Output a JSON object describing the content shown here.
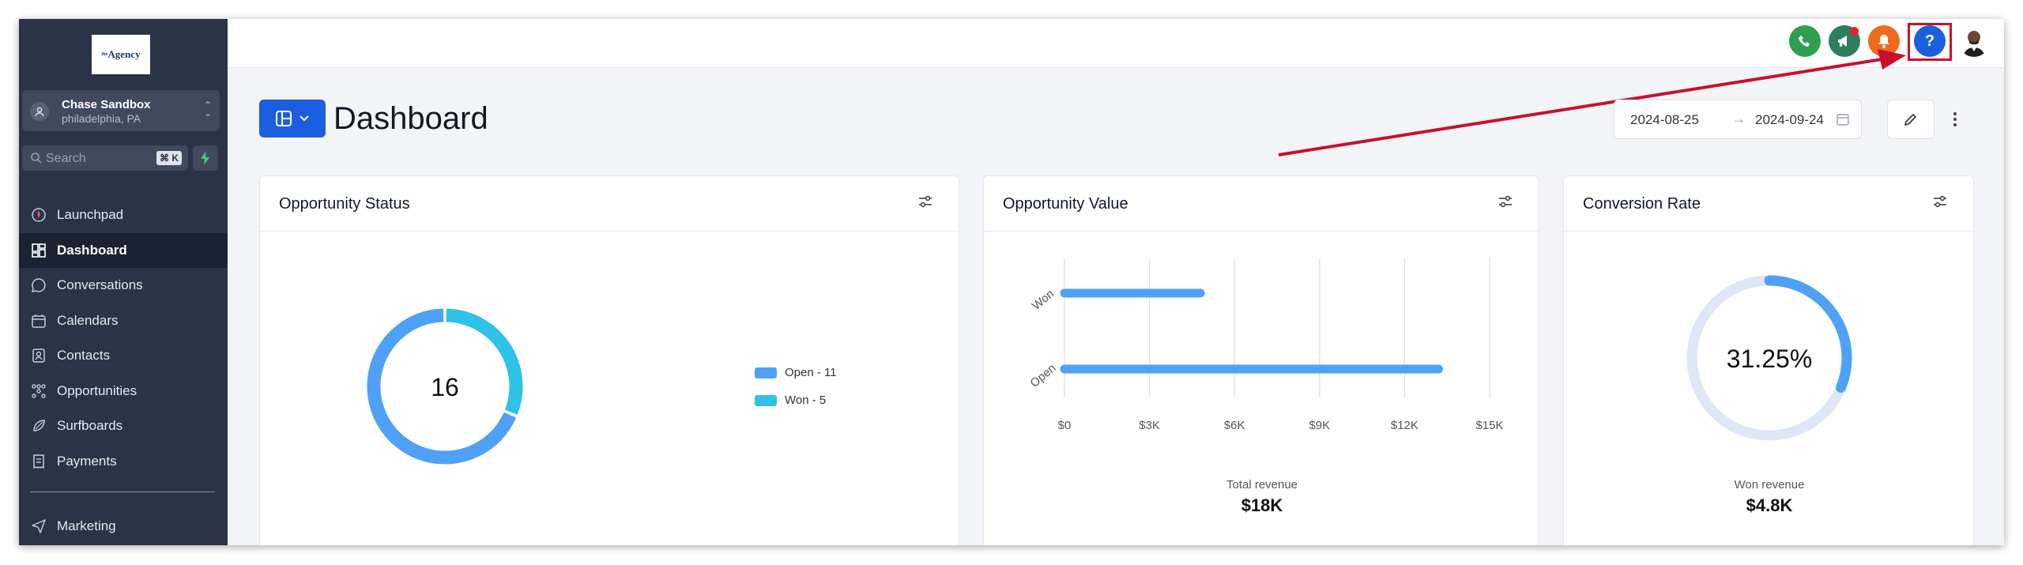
{
  "logo": {
    "sup": "the",
    "text": "Agency"
  },
  "account": {
    "name": "Chase Sandbox",
    "location": "philadelphia, PA"
  },
  "search": {
    "placeholder": "Search",
    "shortcut": "⌘ K"
  },
  "nav": [
    {
      "label": "Launchpad",
      "icon": "rocket-icon",
      "active": false
    },
    {
      "label": "Dashboard",
      "icon": "grid-icon",
      "active": true
    },
    {
      "label": "Conversations",
      "icon": "chat-bubble-icon",
      "active": false
    },
    {
      "label": "Calendars",
      "icon": "calendar-icon",
      "active": false
    },
    {
      "label": "Contacts",
      "icon": "contact-card-icon",
      "active": false
    },
    {
      "label": "Opportunities",
      "icon": "funnel-icon",
      "active": false
    },
    {
      "label": "Surfboards",
      "icon": "surfboard-icon",
      "active": false
    },
    {
      "label": "Payments",
      "icon": "receipt-icon",
      "active": false
    }
  ],
  "nav_marketing": {
    "label": "Marketing",
    "icon": "send-icon"
  },
  "topbar": {
    "icons": [
      "phone-icon",
      "megaphone-icon",
      "bell-icon",
      "help-icon"
    ],
    "colors": {
      "phone": "#2e9e4f",
      "megaphone": "#2e7d5b",
      "bell": "#f06a1d",
      "help": "#1b5fe0"
    }
  },
  "header": {
    "title": "Dashboard",
    "date_start": "2024-08-25",
    "date_end": "2024-09-24"
  },
  "cards": {
    "status": {
      "title": "Opportunity Status",
      "total": "16",
      "legend": [
        "Open - 11",
        "Won - 5"
      ]
    },
    "value": {
      "title": "Opportunity Value",
      "footer_label": "Total revenue",
      "footer_value": "$18K"
    },
    "conversion": {
      "title": "Conversion Rate",
      "percent_text": "31.25%",
      "footer_label": "Won revenue",
      "footer_value": "$4.8K"
    }
  },
  "chart_data": [
    {
      "type": "pie",
      "title": "Opportunity Status",
      "categories": [
        "Open",
        "Won"
      ],
      "values": [
        11,
        5
      ],
      "colors": [
        "#4ea1f7",
        "#2ec3e6"
      ],
      "center_label": "16",
      "legend": "right"
    },
    {
      "type": "bar",
      "orientation": "horizontal",
      "title": "Opportunity Value",
      "categories": [
        "Won",
        "Open"
      ],
      "values": [
        4800,
        13200
      ],
      "xlim": [
        0,
        15000
      ],
      "xticks": [
        0,
        3000,
        6000,
        9000,
        12000,
        15000
      ],
      "xtick_labels": [
        "$0",
        "$3K",
        "$6K",
        "$9K",
        "$12K",
        "$15K"
      ],
      "color": "#4ea1f7",
      "grid": true
    },
    {
      "type": "pie",
      "title": "Conversion Rate",
      "values": [
        31.25,
        68.75
      ],
      "colors": [
        "#4ea1f7",
        "#dfe6f7"
      ],
      "center_label": "31.25%"
    }
  ]
}
